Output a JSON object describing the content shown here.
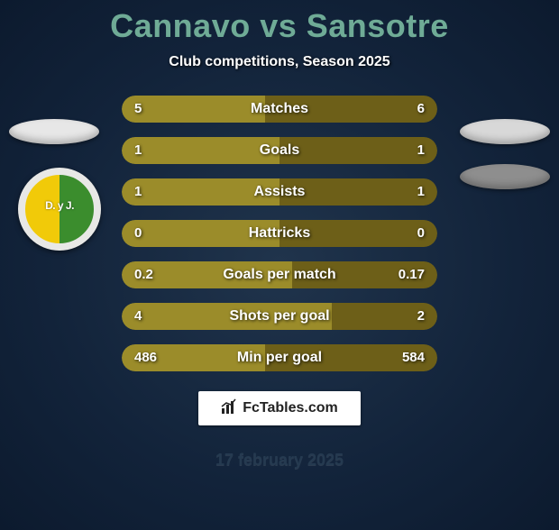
{
  "header": {
    "title": "Cannavo vs Sansotre",
    "subtitle": "Club competitions, Season 2025",
    "title_color": "#6fab96"
  },
  "colors": {
    "bar_left": "#9b8c2a",
    "bar_right": "#6d5f18",
    "bg_center": "#20344c",
    "bg_edge": "#0c1a2e"
  },
  "bars": [
    {
      "label": "Matches",
      "left_val": "5",
      "right_val": "6",
      "left_num": 5,
      "right_num": 6
    },
    {
      "label": "Goals",
      "left_val": "1",
      "right_val": "1",
      "left_num": 1,
      "right_num": 1
    },
    {
      "label": "Assists",
      "left_val": "1",
      "right_val": "1",
      "left_num": 1,
      "right_num": 1
    },
    {
      "label": "Hattricks",
      "left_val": "0",
      "right_val": "0",
      "left_num": 0,
      "right_num": 0
    },
    {
      "label": "Goals per match",
      "left_val": "0.2",
      "right_val": "0.17",
      "left_num": 0.2,
      "right_num": 0.17
    },
    {
      "label": "Shots per goal",
      "left_val": "4",
      "right_val": "2",
      "left_num": 4,
      "right_num": 2
    },
    {
      "label": "Min per goal",
      "left_val": "486",
      "right_val": "584",
      "left_num": 486,
      "right_num": 584
    }
  ],
  "badge": {
    "text": "D. y J."
  },
  "site": {
    "label": "FcTables.com"
  },
  "footer": {
    "date": "17 february 2025"
  }
}
